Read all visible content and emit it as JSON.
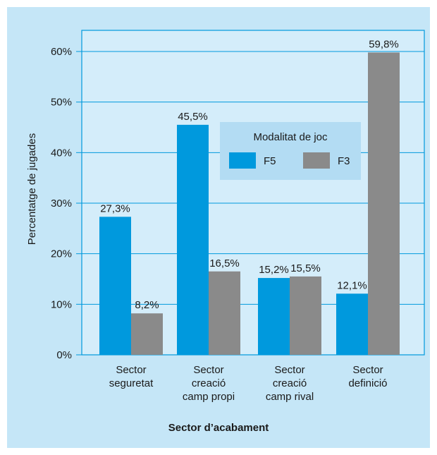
{
  "colors": {
    "background": "#c5e6f7",
    "plot_area": "#d4edfa",
    "legend_box": "#b3dcf3",
    "F5": "#0099dd",
    "F3": "#8a8a8a",
    "axis": "#0099dd"
  },
  "chart_data": {
    "type": "bar",
    "title": "",
    "xlabel": "Sector d’acabament",
    "ylabel": "Percentatge de jugades",
    "ylim": [
      0,
      60
    ],
    "yticks": [
      0,
      10,
      20,
      30,
      40,
      50,
      60
    ],
    "ytick_labels": [
      "0%",
      "10%",
      "20%",
      "30%",
      "40%",
      "50%",
      "60%"
    ],
    "grid": true,
    "categories": [
      [
        "Sector",
        "seguretat"
      ],
      [
        "Sector",
        "creació",
        "camp propi"
      ],
      [
        "Sector",
        "creació",
        "camp rival"
      ],
      [
        "Sector",
        "definició"
      ]
    ],
    "series": [
      {
        "name": "F5",
        "color": "#0099dd",
        "values": [
          27.3,
          45.5,
          15.2,
          12.1
        ],
        "labels": [
          "27,3%",
          "45,5%",
          "15,2%",
          "12,1%"
        ]
      },
      {
        "name": "F3",
        "color": "#8a8a8a",
        "values": [
          8.2,
          16.5,
          15.5,
          59.8
        ],
        "labels": [
          "8,2%",
          "16,5%",
          "15,5%",
          "59,8%"
        ]
      }
    ],
    "legend": {
      "title": "Modalitat de joc",
      "position": "top-right"
    }
  }
}
